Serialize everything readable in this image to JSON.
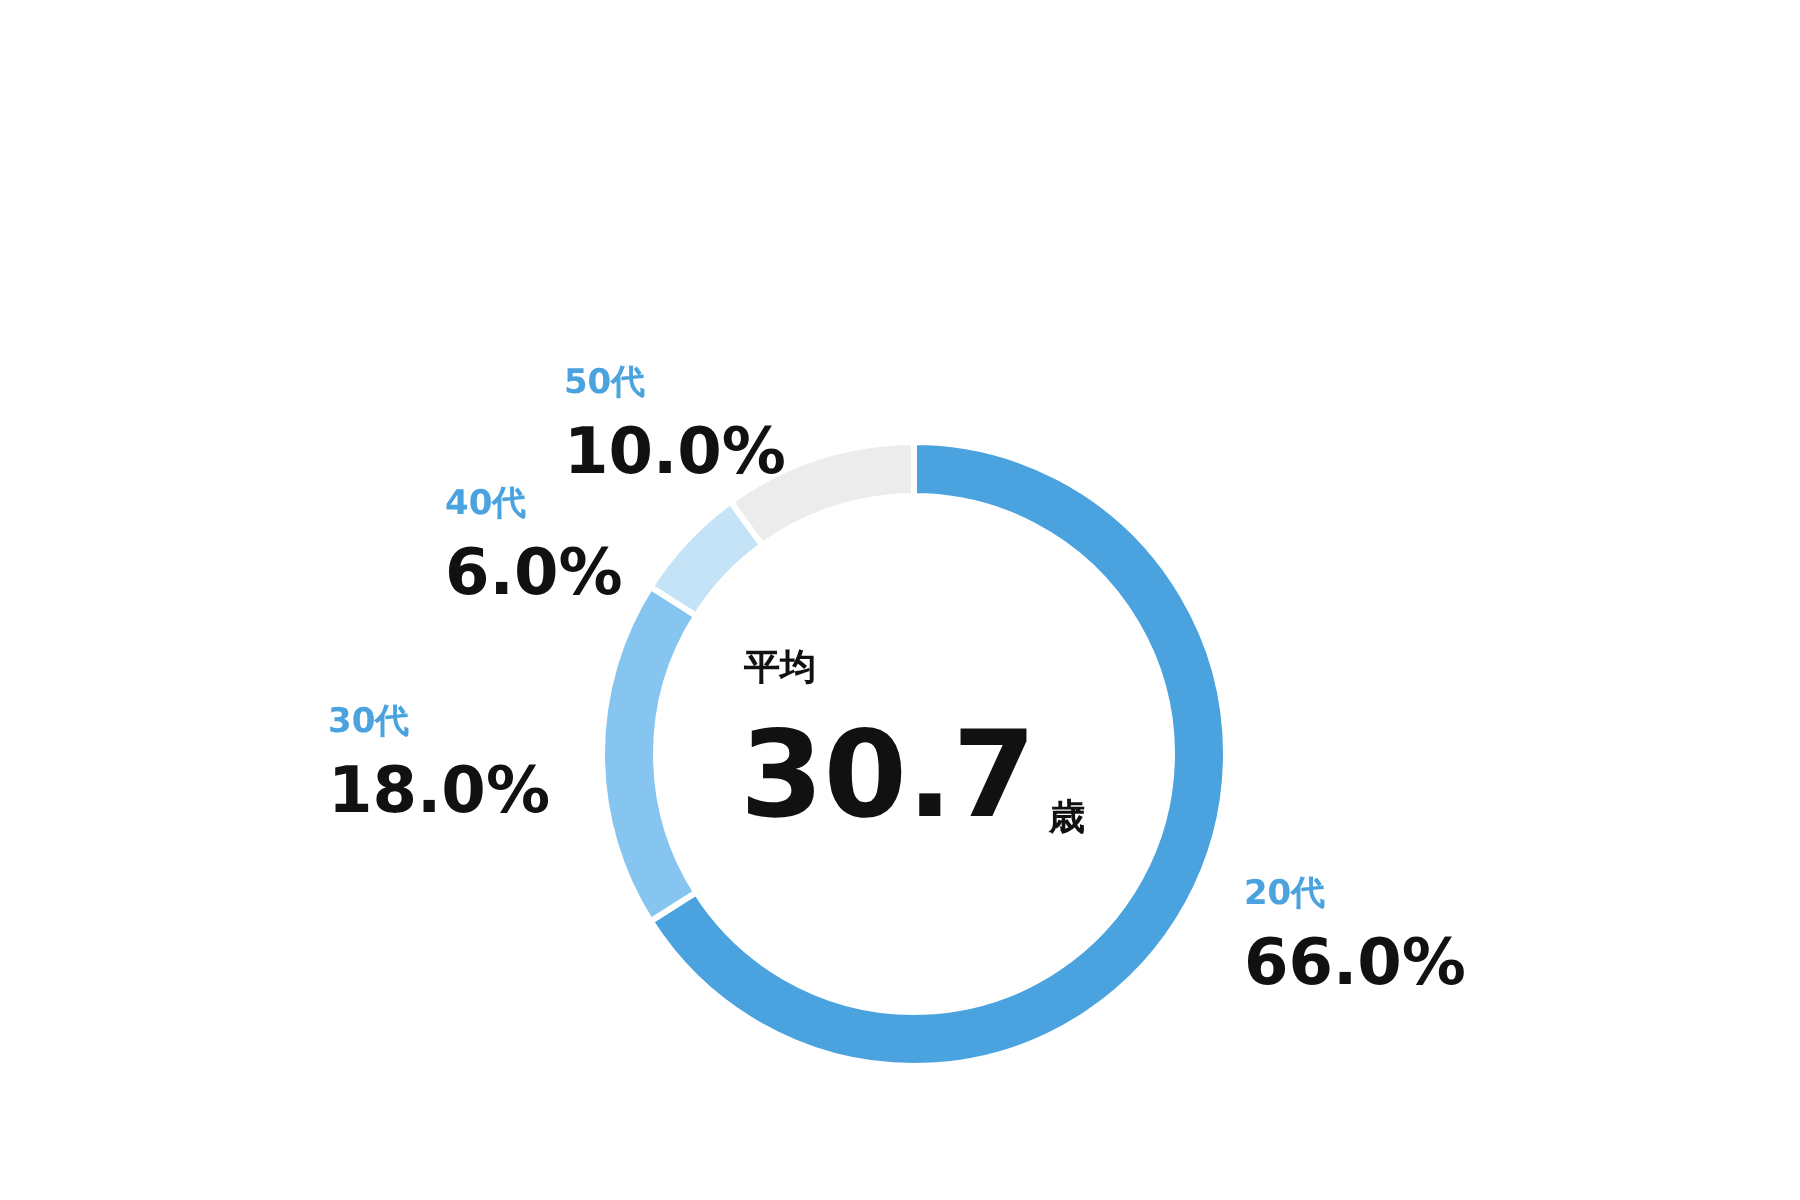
{
  "chart_data": {
    "type": "donut",
    "categories": [
      "20代",
      "30代",
      "40代",
      "50代"
    ],
    "values": [
      66.0,
      18.0,
      6.0,
      10.0
    ],
    "colors": [
      "#4aa3df",
      "#85c5f0",
      "#c5e3f7",
      "#ececec"
    ],
    "value_labels": [
      "66.0%",
      "18.0%",
      "6.0%",
      "10.0%"
    ],
    "annotations": [
      "平均",
      "30.7歳"
    ],
    "legend": false
  }
}
